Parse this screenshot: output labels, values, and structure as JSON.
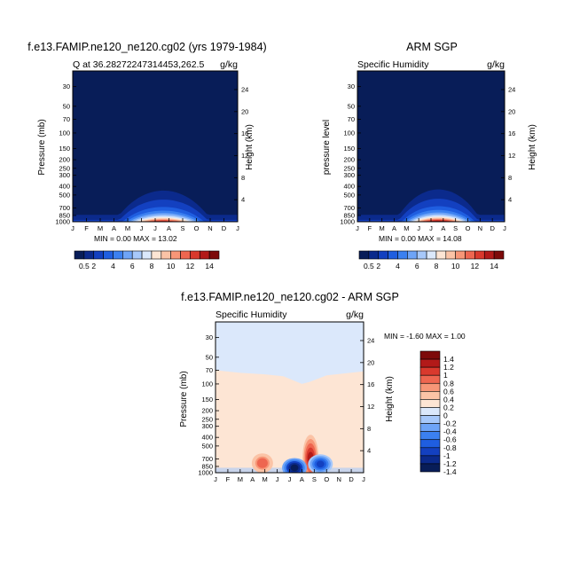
{
  "figure": {
    "panel_left_title": "f.e13.FAMIP.ne120_ne120.cg02 (yrs 1979-1984)",
    "panel_right_title": "ARM SGP",
    "panel_bottom_title": "f.e13.FAMIP.ne120_ne120.cg02 - ARM SGP"
  },
  "chart_data": [
    {
      "type": "heatmap",
      "title": "f.e13.FAMIP.ne120_ne120.cg02 (yrs 1979-1984)",
      "subtitle_left": "Q at 36.28272247314453,262.5",
      "subtitle_right": "g/kg",
      "ylabel": "Pressure (mb)",
      "ylabel_right": "Height (km)",
      "x_ticks": [
        "J",
        "F",
        "M",
        "A",
        "M",
        "J",
        "J",
        "A",
        "S",
        "O",
        "N",
        "D",
        "J"
      ],
      "y_ticks": [
        30,
        50,
        70,
        100,
        150,
        200,
        250,
        300,
        400,
        500,
        700,
        850,
        1000
      ],
      "y_ticks_right": [
        24,
        20,
        16,
        12,
        8,
        4
      ],
      "min": 0.0,
      "max": 13.02,
      "stats_text": "MIN =    0.00  MAX =    13.02",
      "peak_month": 6.6,
      "peak_value": 13.02
    },
    {
      "type": "heatmap",
      "title": "ARM SGP",
      "subtitle_left": "Specific Humidity",
      "subtitle_right": "g/kg",
      "ylabel": "pressure level",
      "ylabel_right": "Height (km)",
      "x_ticks": [
        "J",
        "F",
        "M",
        "A",
        "M",
        "J",
        "J",
        "A",
        "S",
        "O",
        "N",
        "D",
        "J"
      ],
      "y_ticks": [
        30,
        50,
        70,
        100,
        150,
        200,
        250,
        300,
        400,
        500,
        700,
        850,
        1000
      ],
      "y_ticks_right": [
        24,
        20,
        16,
        12,
        8,
        4
      ],
      "min": 0.0,
      "max": 14.08,
      "stats_text": "MIN =    0.00  MAX =    14.08",
      "peak_month": 6.6,
      "peak_value": 14.08
    },
    {
      "type": "heatmap",
      "title": "f.e13.FAMIP.ne120_ne120.cg02 - ARM SGP",
      "subtitle_left": "Specific Humidity",
      "subtitle_right": "g/kg",
      "ylabel": "Pressure (mb)",
      "ylabel_right": "Height (km)",
      "x_ticks": [
        "J",
        "F",
        "M",
        "A",
        "M",
        "J",
        "J",
        "A",
        "S",
        "O",
        "N",
        "D",
        "J"
      ],
      "y_ticks": [
        30,
        50,
        70,
        100,
        150,
        200,
        250,
        300,
        400,
        500,
        700,
        850,
        1000
      ],
      "y_ticks_right": [
        24,
        20,
        16,
        12,
        8,
        4
      ],
      "min": -1.6,
      "max": 1.0,
      "stats_text": "MIN =   -1.60  MAX =    1.00",
      "blobs": [
        {
          "month": 3.8,
          "pressure": 780,
          "value": 0.7
        },
        {
          "month": 7.7,
          "pressure": 680,
          "value": 1.0
        },
        {
          "month": 6.4,
          "pressure": 880,
          "value": -1.6
        },
        {
          "month": 8.5,
          "pressure": 800,
          "value": -1.0
        }
      ]
    }
  ],
  "colorbars": {
    "absolute": {
      "labels": [
        "0.5",
        "2",
        "4",
        "6",
        "8",
        "10",
        "12",
        "14"
      ],
      "colors": [
        "#081d58",
        "#0b2a8c",
        "#1340c0",
        "#1f5ee0",
        "#3b80f0",
        "#6ea4f7",
        "#a7c8fa",
        "#dbe8fb",
        "#fde5d4",
        "#fbc3a6",
        "#f79677",
        "#ee6650",
        "#d9392d",
        "#b21a19",
        "#7d0a0a"
      ]
    },
    "difference": {
      "labels": [
        "1.4",
        "1.2",
        "1",
        "0.8",
        "0.6",
        "0.4",
        "0.2",
        "0",
        "-0.2",
        "-0.4",
        "-0.6",
        "-0.8",
        "-1",
        "-1.2",
        "-1.4"
      ],
      "colors": [
        "#7d0a0a",
        "#b21a19",
        "#d9392d",
        "#ee6650",
        "#f79677",
        "#fbc3a6",
        "#fde5d4",
        "#dbe8fb",
        "#a7c8fa",
        "#6ea4f7",
        "#3b80f0",
        "#1f5ee0",
        "#1340c0",
        "#0b2a8c",
        "#081d58"
      ]
    }
  }
}
